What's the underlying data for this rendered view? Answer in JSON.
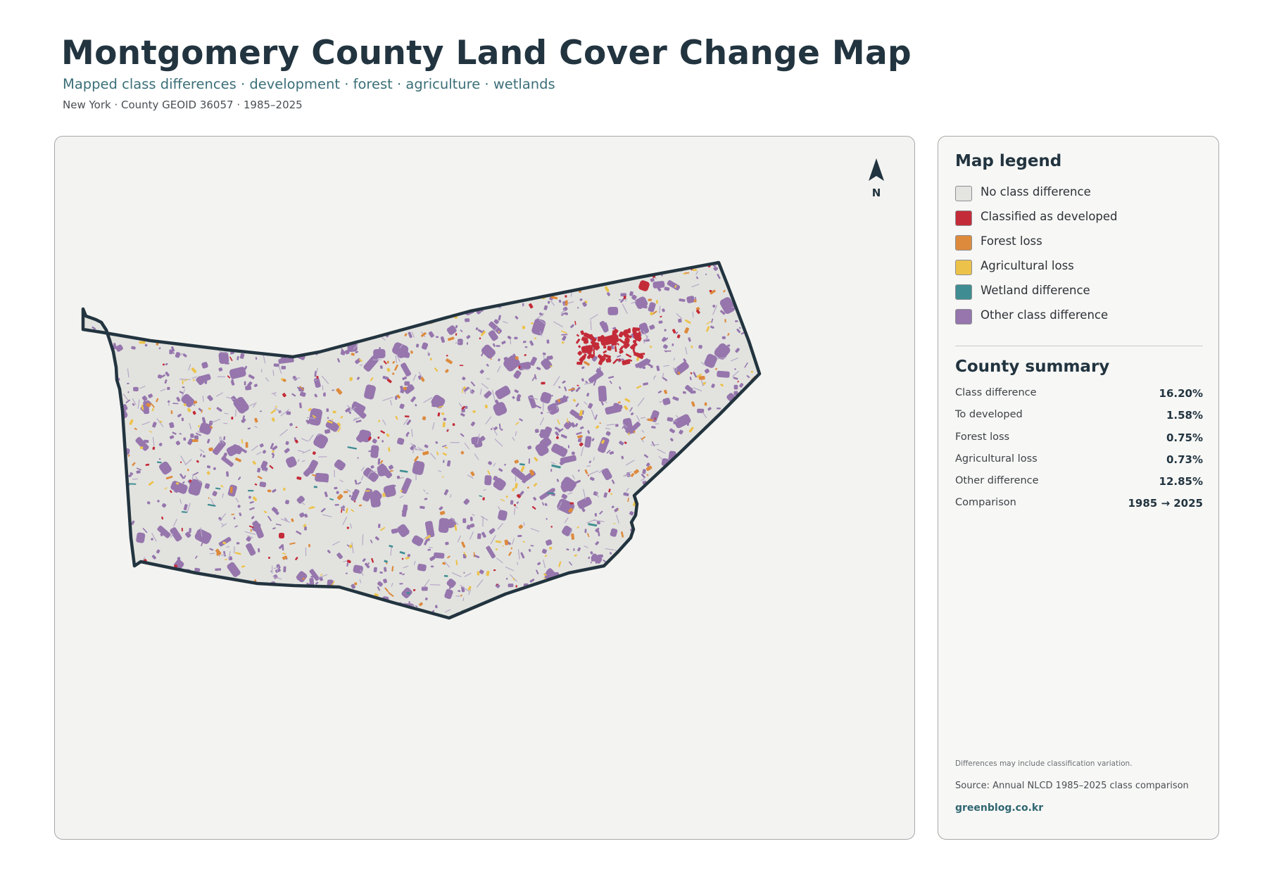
{
  "header": {
    "title": "Montgomery County Land Cover Change Map",
    "subtitle": "Mapped class differences · development · forest · agriculture · wetlands",
    "meta": "New York · County GEOID 36057 · 1985–2025"
  },
  "map": {
    "north_label": "N",
    "north_arrow_icon": "north-arrow-icon",
    "background_color": "#f3f3f1",
    "county_fill": "#e2e3df",
    "county_outline": "#22343f"
  },
  "legend": {
    "title": "Map legend",
    "items": [
      {
        "label": "No class difference",
        "color": "#e4e4e1"
      },
      {
        "label": "Classified as developed",
        "color": "#c42b38"
      },
      {
        "label": "Forest loss",
        "color": "#dd8a3d"
      },
      {
        "label": "Agricultural loss",
        "color": "#ecc24a"
      },
      {
        "label": "Wetland difference",
        "color": "#3f8d92"
      },
      {
        "label": "Other class difference",
        "color": "#9676ad"
      }
    ]
  },
  "summary": {
    "title": "County summary",
    "rows": [
      {
        "label": "Class difference",
        "value": "16.20%"
      },
      {
        "label": "To developed",
        "value": "1.58%"
      },
      {
        "label": "Forest loss",
        "value": "0.75%"
      },
      {
        "label": "Agricultural loss",
        "value": "0.73%"
      },
      {
        "label": "Other difference",
        "value": "12.85%"
      },
      {
        "label": "Comparison",
        "value": "1985 → 2025"
      }
    ]
  },
  "footer": {
    "note": "Differences may include classification variation.",
    "source": "Source: Annual NLCD 1985–2025 class comparison",
    "brand": "greenblog.co.kr"
  }
}
